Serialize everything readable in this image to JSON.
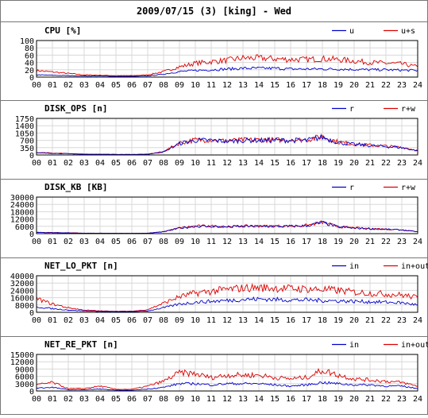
{
  "title": "2009/07/15 (3) [king] - Wed",
  "colors": {
    "primary": "#0000cc",
    "secondary": "#dd0000",
    "grid": "#d8d8d8",
    "frame": "#000000"
  },
  "chart_data": [
    {
      "type": "line",
      "title": "CPU [%]",
      "ylim": [
        0,
        100
      ],
      "yticks": [
        "100",
        "80",
        "60",
        "40",
        "20",
        "0"
      ],
      "xticks": [
        "00",
        "01",
        "02",
        "03",
        "04",
        "05",
        "06",
        "07",
        "08",
        "09",
        "10",
        "11",
        "12",
        "13",
        "14",
        "15",
        "16",
        "17",
        "18",
        "19",
        "20",
        "21",
        "22",
        "23",
        "24"
      ],
      "series": [
        {
          "name": "u",
          "color": "#0000cc",
          "values": [
            6,
            5,
            4,
            3,
            3,
            2,
            2,
            3,
            8,
            15,
            18,
            20,
            22,
            24,
            24,
            24,
            22,
            22,
            22,
            22,
            21,
            20,
            20,
            19,
            18
          ]
        },
        {
          "name": "u+s",
          "color": "#dd0000",
          "values": [
            18,
            14,
            10,
            6,
            5,
            4,
            4,
            6,
            15,
            28,
            38,
            42,
            46,
            52,
            52,
            50,
            48,
            48,
            50,
            48,
            44,
            40,
            38,
            36,
            28
          ]
        }
      ]
    },
    {
      "type": "line",
      "title": "DISK_OPS [n]",
      "ylim": [
        0,
        1750
      ],
      "yticks": [
        "1750",
        "1400",
        "1050",
        "700",
        "350",
        "0"
      ],
      "xticks": [
        "00",
        "01",
        "02",
        "03",
        "04",
        "05",
        "06",
        "07",
        "08",
        "09",
        "10",
        "11",
        "12",
        "13",
        "14",
        "15",
        "16",
        "17",
        "18",
        "19",
        "20",
        "21",
        "22",
        "23",
        "24"
      ],
      "series": [
        {
          "name": "r",
          "color": "#0000cc",
          "values": [
            100,
            80,
            60,
            30,
            30,
            20,
            20,
            30,
            150,
            550,
            700,
            700,
            650,
            700,
            700,
            700,
            700,
            700,
            850,
            600,
            500,
            450,
            400,
            350,
            200
          ]
        },
        {
          "name": "r+w",
          "color": "#dd0000",
          "values": [
            110,
            90,
            70,
            40,
            40,
            30,
            30,
            40,
            160,
            570,
            720,
            720,
            670,
            720,
            720,
            720,
            720,
            720,
            880,
            620,
            520,
            470,
            420,
            370,
            220
          ]
        }
      ]
    },
    {
      "type": "line",
      "title": "DISK_KB [KB]",
      "ylim": [
        0,
        30000
      ],
      "yticks": [
        "30000",
        "24000",
        "18000",
        "12000",
        "6000",
        "0"
      ],
      "xticks": [
        "00",
        "01",
        "02",
        "03",
        "04",
        "05",
        "06",
        "07",
        "08",
        "09",
        "10",
        "11",
        "12",
        "13",
        "14",
        "15",
        "16",
        "17",
        "18",
        "19",
        "20",
        "21",
        "22",
        "23",
        "24"
      ],
      "series": [
        {
          "name": "r",
          "color": "#0000cc",
          "values": [
            1000,
            800,
            600,
            300,
            300,
            200,
            200,
            300,
            1500,
            4500,
            6000,
            6000,
            5500,
            6000,
            6000,
            6000,
            6000,
            6500,
            9000,
            5500,
            4500,
            4000,
            3500,
            3000,
            1500
          ]
        },
        {
          "name": "r+w",
          "color": "#dd0000",
          "values": [
            1100,
            900,
            700,
            400,
            400,
            300,
            300,
            400,
            1600,
            4700,
            6200,
            6200,
            5700,
            6200,
            6200,
            6200,
            6200,
            6700,
            9300,
            5700,
            4700,
            4200,
            3700,
            3200,
            1700
          ]
        }
      ]
    },
    {
      "type": "line",
      "title": "NET_LO_PKT [n]",
      "ylim": [
        0,
        40000
      ],
      "yticks": [
        "40000",
        "32000",
        "24000",
        "16000",
        "8000",
        "0"
      ],
      "xticks": [
        "00",
        "01",
        "02",
        "03",
        "04",
        "05",
        "06",
        "07",
        "08",
        "09",
        "10",
        "11",
        "12",
        "13",
        "14",
        "15",
        "16",
        "17",
        "18",
        "19",
        "20",
        "21",
        "22",
        "23",
        "24"
      ],
      "series": [
        {
          "name": "in",
          "color": "#0000cc",
          "values": [
            6000,
            4000,
            2500,
            1500,
            1000,
            800,
            800,
            1500,
            5000,
            9000,
            11000,
            12000,
            13000,
            14000,
            14500,
            14000,
            13500,
            13500,
            13000,
            12500,
            12000,
            11500,
            11000,
            10500,
            8000
          ]
        },
        {
          "name": "in+out",
          "color": "#dd0000",
          "values": [
            15000,
            9000,
            5000,
            2500,
            1500,
            1200,
            1200,
            3000,
            10000,
            17000,
            21000,
            23000,
            25000,
            26500,
            27000,
            26500,
            26000,
            25500,
            25000,
            24000,
            22000,
            21000,
            20000,
            19000,
            16000
          ]
        }
      ]
    },
    {
      "type": "line",
      "title": "NET_RE_PKT [n]",
      "ylim": [
        0,
        15000
      ],
      "yticks": [
        "15000",
        "12000",
        "9000",
        "6000",
        "3000",
        "0"
      ],
      "xticks": [
        "00",
        "01",
        "02",
        "03",
        "04",
        "05",
        "06",
        "07",
        "08",
        "09",
        "10",
        "11",
        "12",
        "13",
        "14",
        "15",
        "16",
        "17",
        "18",
        "19",
        "20",
        "21",
        "22",
        "23",
        "24"
      ],
      "series": [
        {
          "name": "in",
          "color": "#0000cc",
          "values": [
            1200,
            1500,
            500,
            500,
            800,
            300,
            300,
            800,
            1500,
            3000,
            3000,
            2500,
            3000,
            3000,
            3000,
            2500,
            2000,
            2500,
            3500,
            3000,
            2500,
            2500,
            2000,
            2000,
            1000
          ]
        },
        {
          "name": "in+out",
          "color": "#dd0000",
          "values": [
            2500,
            3500,
            1000,
            1000,
            2000,
            700,
            700,
            2000,
            4000,
            7500,
            7000,
            5500,
            6500,
            6500,
            6500,
            5500,
            5000,
            5500,
            8500,
            6500,
            5000,
            4500,
            4000,
            3500,
            2000
          ]
        }
      ]
    }
  ]
}
